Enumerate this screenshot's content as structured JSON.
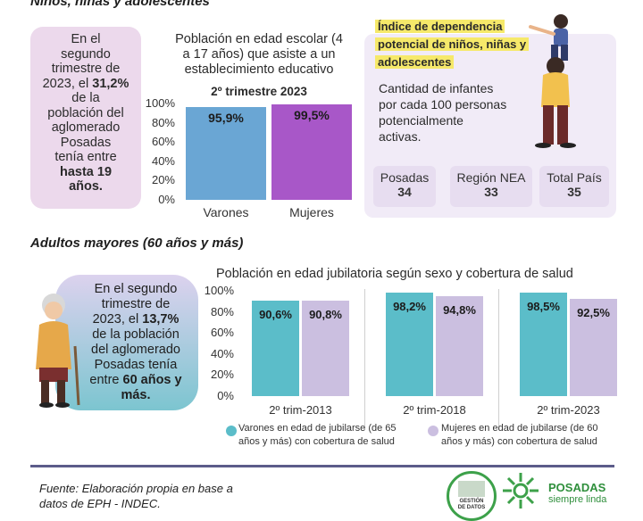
{
  "sections": {
    "children_title": "Niños, niñas y adolescentes",
    "elderly_title": "Adultos mayores (60 años y más)"
  },
  "children_fact": {
    "l1": "En el",
    "l2": "segundo",
    "l3": "trimestre de",
    "l4_a": "2023, el ",
    "l4_b": "31,2%",
    "l5": "de la",
    "l6": "población del",
    "l7": "aglomerado",
    "l8": "Posadas",
    "l9": "tenía entre",
    "l10": "hasta 19",
    "l11": "años."
  },
  "school_chart": {
    "title_l1": "Población en edad escolar (4",
    "title_l2": "a 17 años) que asiste a un",
    "title_l3": "establecimiento educativo",
    "subtitle": "2º trimestre 2023"
  },
  "dependency": {
    "title_l1": "Índice de dependencia",
    "title_l2": "potencial de niños, niñas y",
    "title_l3": "adolescentes",
    "desc_l1": "Cantidad de infantes",
    "desc_l2": "por cada 100 personas",
    "desc_l3": "potencialmente",
    "desc_l4": "activas.",
    "stats": [
      {
        "label": "Posadas",
        "value": "34"
      },
      {
        "label": "Región NEA",
        "value": "33"
      },
      {
        "label": "Total País",
        "value": "35"
      }
    ]
  },
  "elderly_fact": {
    "l1": "En el segundo",
    "l2": "trimestre de",
    "l3_a": "2023, el ",
    "l3_b": "13,7%",
    "l4": "de la población",
    "l5": "del aglomerado",
    "l6": "Posadas tenía",
    "l7_a": "entre ",
    "l7_b": "60 años y",
    "l8": "más."
  },
  "retirement_chart": {
    "title": "Población en edad jubilatoria según sexo y cobertura de salud",
    "legend": {
      "men_l1": "Varones en edad de jubilarse (de 65",
      "men_l2": "años y más) con cobertura de salud",
      "women_l1": "Mujeres en edad de jubilarse (de 60",
      "women_l2": "años y más) con cobertura de salud"
    }
  },
  "footer": {
    "source_l1": "Fuente: Elaboración propia en base a",
    "source_l2": "datos de EPH - INDEC.",
    "logo1_l1": "GESTIÓN",
    "logo1_l2": "DE DATOS",
    "logo2_l1": "POSADAS",
    "logo2_l2": "siempre linda"
  },
  "colors": {
    "teal": "#5bbdc9",
    "lavender": "#cbbfe0",
    "school_blue": "#6aa6d4",
    "school_purple": "#a857c8",
    "pink_box": "#ecd9ec",
    "light_purple_box": "#f1ebf7",
    "yellow_highlight": "#f6e96a",
    "divider": "#5c5c8a"
  },
  "chart_data": [
    {
      "type": "bar",
      "title": "Población en edad escolar (4 a 17 años) que asiste a un establecimiento educativo",
      "subtitle": "2º trimestre 2023",
      "categories": [
        "Varones",
        "Mujeres"
      ],
      "values": [
        95.9,
        99.5
      ],
      "value_labels": [
        "95,9%",
        "99,5%"
      ],
      "colors": [
        "#6aa6d4",
        "#a857c8"
      ],
      "ylim": [
        0,
        100
      ],
      "yticks": [
        "0%",
        "20%",
        "40%",
        "60%",
        "80%",
        "100%"
      ]
    },
    {
      "type": "bar",
      "title": "Población en edad jubilatoria según sexo y cobertura de salud",
      "categories": [
        "2º trim-2013",
        "2º trim-2018",
        "2º trim-2023"
      ],
      "series": [
        {
          "name": "Varones en edad de jubilarse (de 65 años y más) con cobertura de salud",
          "values": [
            90.6,
            98.2,
            98.5
          ],
          "labels": [
            "90,6%",
            "98,2%",
            "98,5%"
          ],
          "color": "#5bbdc9"
        },
        {
          "name": "Mujeres en edad de jubilarse (de 60 años y más) con cobertura de salud",
          "values": [
            90.8,
            94.8,
            92.5
          ],
          "labels": [
            "90,8%",
            "94,8%",
            "92,5%"
          ],
          "color": "#cbbfe0"
        }
      ],
      "ylim": [
        0,
        100
      ],
      "yticks": [
        "0%",
        "20%",
        "40%",
        "60%",
        "80%",
        "100%"
      ]
    }
  ]
}
